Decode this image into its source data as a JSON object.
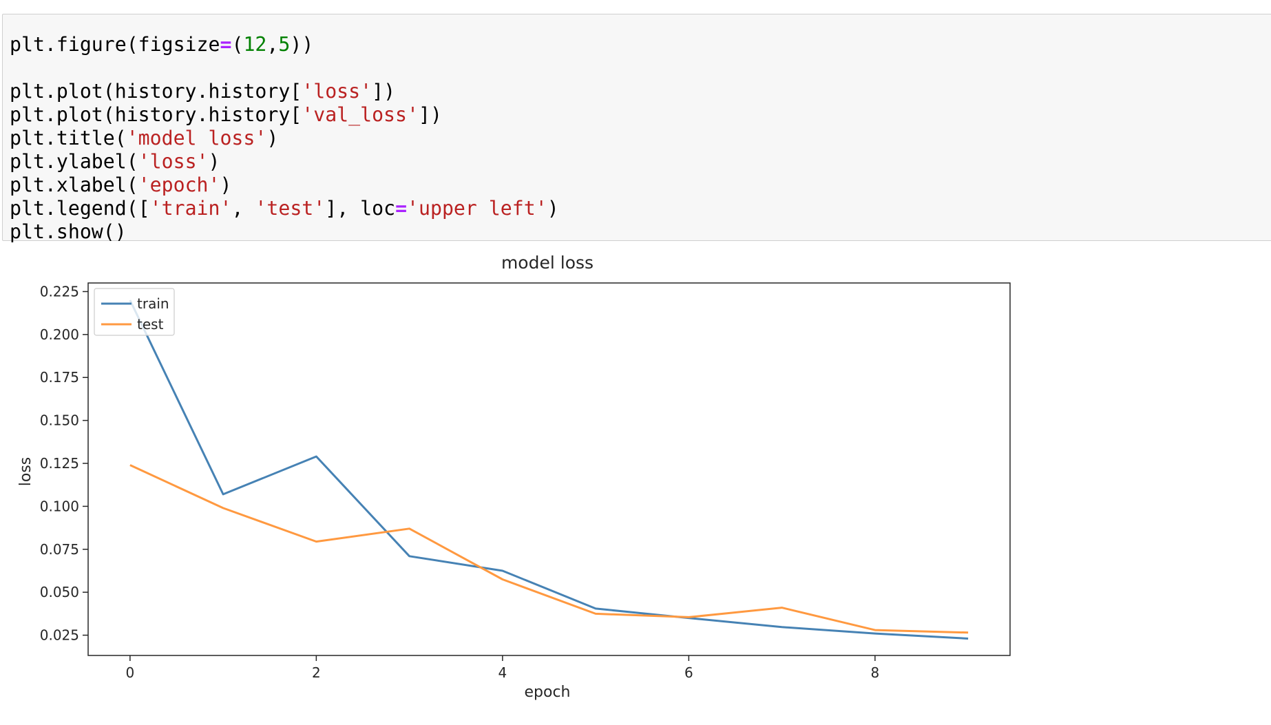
{
  "code_lines": [
    [
      {
        "t": "plt.figure(figsize"
      },
      {
        "t": "=",
        "c": "op"
      },
      {
        "t": "("
      },
      {
        "t": "12",
        "c": "num"
      },
      {
        "t": ","
      },
      {
        "t": "5",
        "c": "num"
      },
      {
        "t": "))"
      }
    ],
    [],
    [
      {
        "t": "plt.plot(history.history["
      },
      {
        "t": "'loss'",
        "c": "str"
      },
      {
        "t": "])"
      }
    ],
    [
      {
        "t": "plt.plot(history.history["
      },
      {
        "t": "'val_loss'",
        "c": "str"
      },
      {
        "t": "])"
      }
    ],
    [
      {
        "t": "plt.title("
      },
      {
        "t": "'model loss'",
        "c": "str"
      },
      {
        "t": ")"
      }
    ],
    [
      {
        "t": "plt.ylabel("
      },
      {
        "t": "'loss'",
        "c": "str"
      },
      {
        "t": ")"
      }
    ],
    [
      {
        "t": "plt.xlabel("
      },
      {
        "t": "'epoch'",
        "c": "str"
      },
      {
        "t": ")"
      }
    ],
    [
      {
        "t": "plt.legend(["
      },
      {
        "t": "'train'",
        "c": "str"
      },
      {
        "t": ", "
      },
      {
        "t": "'test'",
        "c": "str"
      },
      {
        "t": "], loc"
      },
      {
        "t": "=",
        "c": "op"
      },
      {
        "t": "'upper left'",
        "c": "str"
      },
      {
        "t": ")"
      }
    ],
    [
      {
        "t": "plt.show()"
      }
    ]
  ],
  "colors": {
    "train": "#4682b4",
    "test": "#ff9940",
    "string": "#ba2121",
    "number": "#008000",
    "operator": "#aa22ff"
  },
  "chart_data": {
    "type": "line",
    "title": "model loss",
    "xlabel": "epoch",
    "ylabel": "loss",
    "x": [
      0,
      1,
      2,
      3,
      4,
      5,
      6,
      7,
      8,
      9
    ],
    "series": [
      {
        "name": "train",
        "values": [
          0.22,
          0.107,
          0.129,
          0.071,
          0.0625,
          0.0405,
          0.035,
          0.0297,
          0.026,
          0.023
        ]
      },
      {
        "name": "test",
        "values": [
          0.124,
          0.099,
          0.0795,
          0.087,
          0.0575,
          0.0375,
          0.0355,
          0.041,
          0.028,
          0.0265
        ]
      }
    ],
    "xticks": [
      "0",
      "2",
      "4",
      "6",
      "8"
    ],
    "yticks": [
      "0.025",
      "0.050",
      "0.075",
      "0.100",
      "0.125",
      "0.150",
      "0.175",
      "0.200",
      "0.225"
    ],
    "xlim": [
      -0.45,
      9.45
    ],
    "ylim": [
      0.0132,
      0.23
    ],
    "legend_position": "upper left",
    "grid": false
  }
}
